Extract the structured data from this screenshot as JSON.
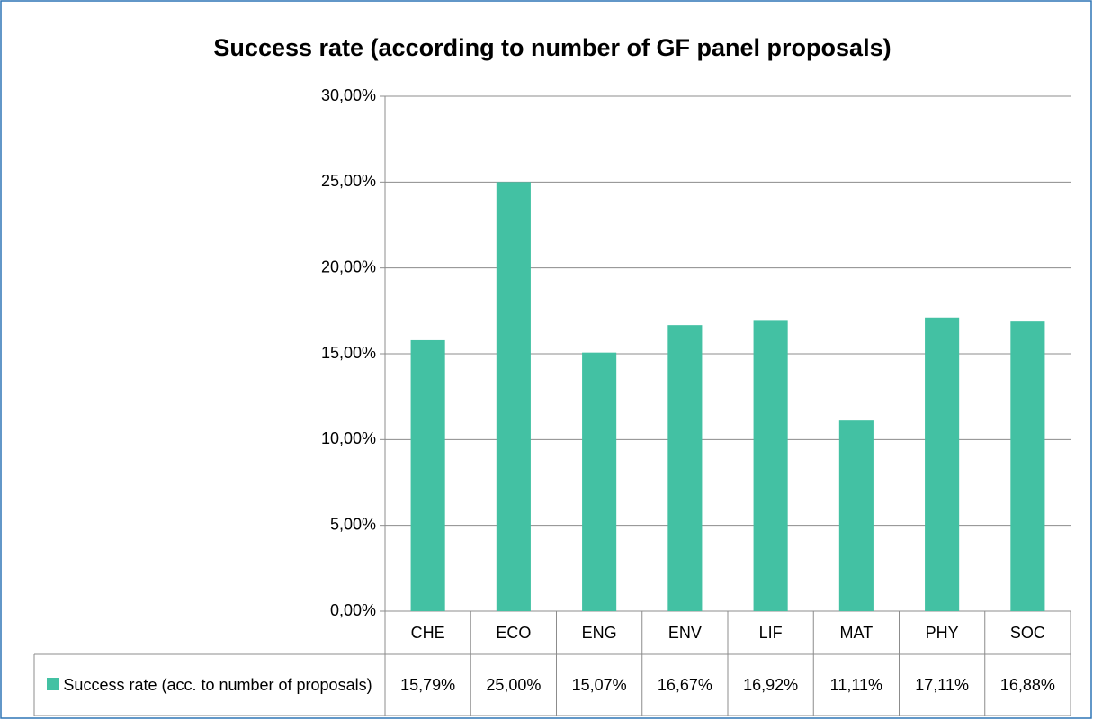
{
  "chart_data": {
    "type": "bar",
    "title": "Success rate (according to number of GF panel proposals)",
    "categories": [
      "CHE",
      "ECO",
      "ENG",
      "ENV",
      "LIF",
      "MAT",
      "PHY",
      "SOC"
    ],
    "series": [
      {
        "name": "Success rate (acc. to number of proposals)",
        "color": "#43c1a3",
        "values": [
          15.79,
          25.0,
          15.07,
          16.67,
          16.92,
          11.11,
          17.11,
          16.88
        ],
        "value_labels": [
          "15,79%",
          "25,00%",
          "15,07%",
          "16,67%",
          "16,92%",
          "11,11%",
          "17,11%",
          "16,88%"
        ]
      }
    ],
    "ylim": [
      0,
      30
    ],
    "yticks": [
      {
        "value": 0,
        "label": "0,00%"
      },
      {
        "value": 5,
        "label": "5,00%"
      },
      {
        "value": 10,
        "label": "10,00%"
      },
      {
        "value": 15,
        "label": "15,00%"
      },
      {
        "value": 20,
        "label": "20,00%"
      },
      {
        "value": 25,
        "label": "25,00%"
      },
      {
        "value": 30,
        "label": "30,00%"
      }
    ],
    "grid": true
  }
}
